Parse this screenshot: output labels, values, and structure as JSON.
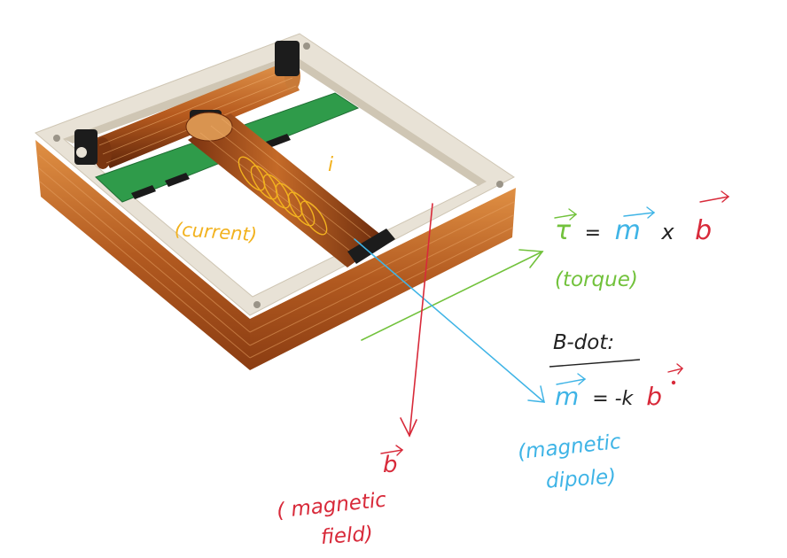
{
  "colors": {
    "current": "#f2b21f",
    "torque": "#72c23c",
    "dipole": "#3fb4e6",
    "field": "#d82a3a",
    "ink": "#222222",
    "frame": "#e7e1d5",
    "copper": "#b5591c",
    "pcb": "#2f9b4a"
  },
  "labels": {
    "current_symbol": "i",
    "current": "(current)",
    "torque_eq_tau": "τ",
    "torque_eq_equals": "=",
    "torque_eq_m": "m",
    "torque_eq_times": "x",
    "torque_eq_b": "b",
    "torque": "(torque)",
    "bdot_title": "B-dot:",
    "bdot_eq_m": "m",
    "bdot_eq_rest": "= -k",
    "bdot_eq_b": "b",
    "dipole_line1": "(magnetic",
    "dipole_line2": "dipole)",
    "field_symbol": "b",
    "field_line1": "( magnetic",
    "field_line2": "field)"
  }
}
